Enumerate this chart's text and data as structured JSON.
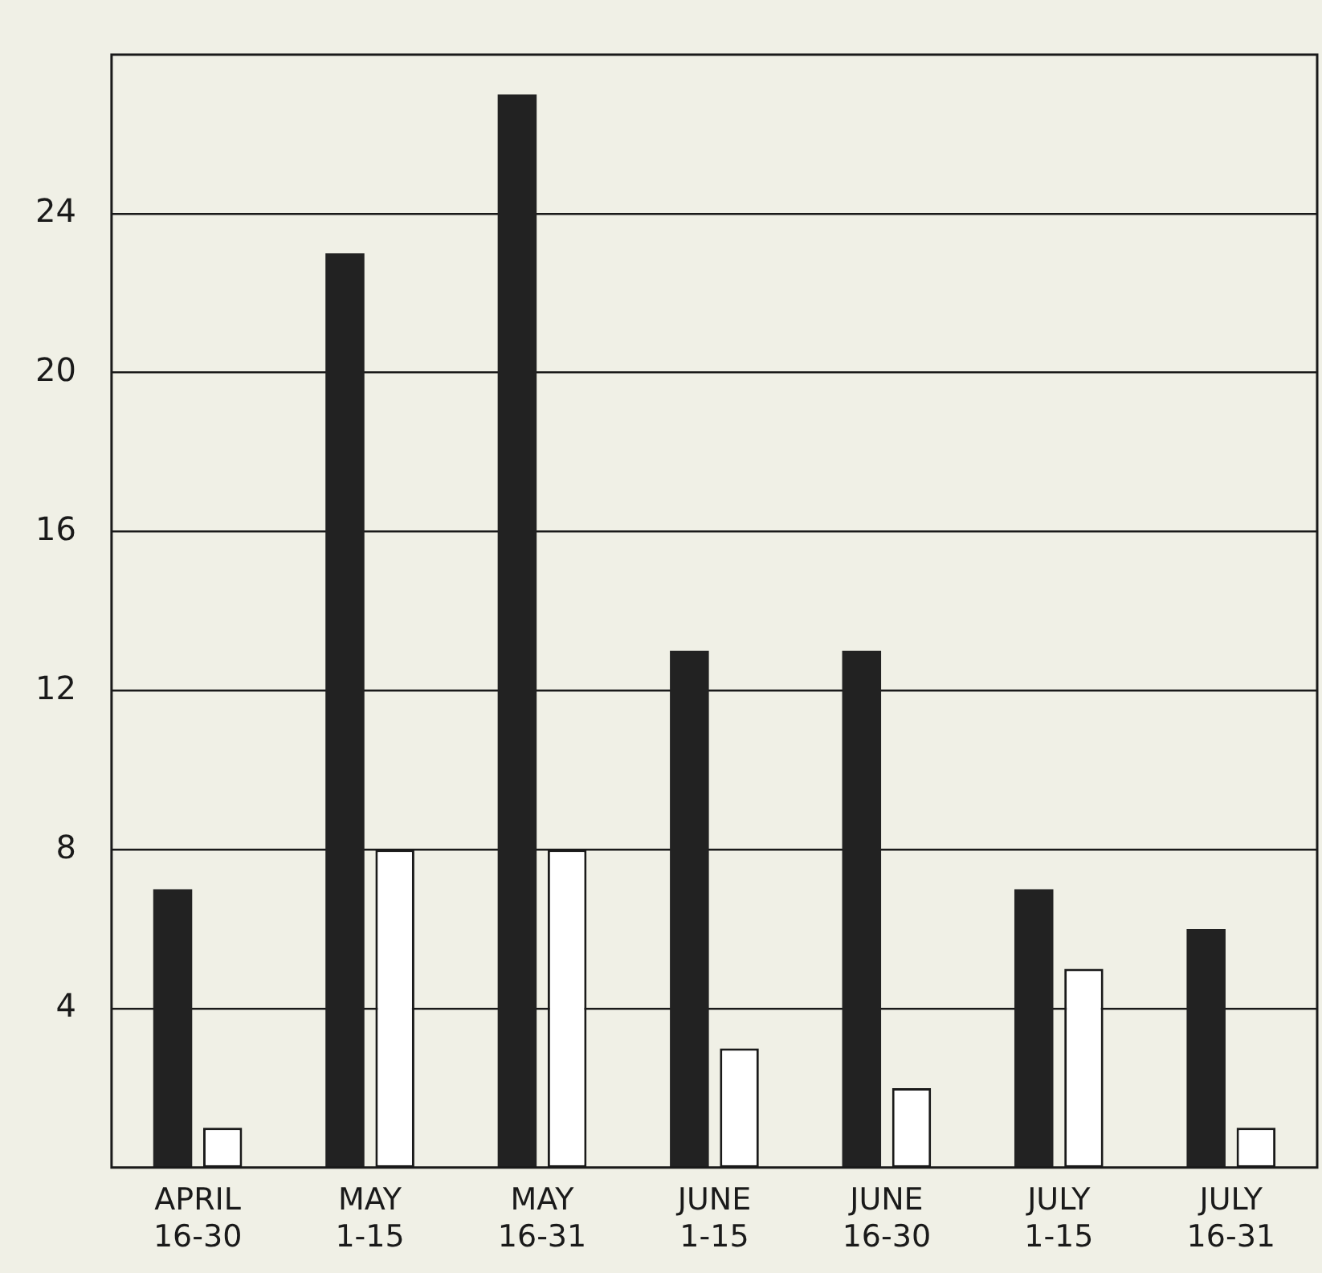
{
  "chart_data": {
    "type": "bar",
    "categories": [
      "APRIL\n16-30",
      "MAY\n1-15",
      "MAY\n16-31",
      "JUNE\n1-15",
      "JUNE\n16-30",
      "JULY\n1-15",
      "JULY\n16-31"
    ],
    "series": [
      {
        "color": "#222222",
        "values": [
          7,
          23,
          27,
          13,
          13,
          7,
          6
        ]
      },
      {
        "color": "#ffffff",
        "values": [
          1,
          8,
          8,
          3,
          2,
          5,
          1
        ]
      }
    ],
    "ylim": [
      0,
      28
    ],
    "yticks": [
      4,
      8,
      12,
      16,
      20,
      24
    ],
    "grid": "y",
    "legend": false
  }
}
